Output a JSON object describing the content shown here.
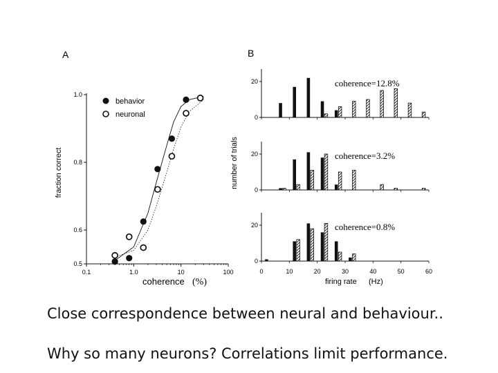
{
  "captions": {
    "line1": "Close correspondence between neural and behaviour..",
    "line2": "Why so many neurons?  Correlations limit performance."
  },
  "colors": {
    "ink": "#111111",
    "background": "#ffffff"
  },
  "chart_data": [
    {
      "panel": "A",
      "type": "scatter",
      "xscale": "log",
      "xlim": [
        0.1,
        100
      ],
      "ylim": [
        0.5,
        1.0
      ],
      "xlabel": "coherence",
      "xunit": "(%)",
      "ylabel": "fraction correct",
      "xticks": [
        "0.1",
        "1.0",
        "10",
        "100"
      ],
      "yticks": [
        "0.5",
        "0.6",
        "0.8",
        "1.0"
      ],
      "legend_position": "top-left",
      "series": [
        {
          "name": "behavior",
          "marker": "filled-circle",
          "points": [
            [
              0.4,
              0.507
            ],
            [
              0.8,
              0.517
            ],
            [
              1.6,
              0.625
            ],
            [
              3.2,
              0.78
            ],
            [
              6.4,
              0.87
            ],
            [
              12.8,
              0.985
            ],
            [
              25.6,
              0.99
            ]
          ]
        },
        {
          "name": "neuronal",
          "marker": "open-circle",
          "points": [
            [
              0.4,
              0.525
            ],
            [
              0.8,
              0.58
            ],
            [
              1.6,
              0.548
            ],
            [
              3.2,
              0.72
            ],
            [
              6.4,
              0.818
            ],
            [
              12.8,
              0.945
            ],
            [
              25.6,
              0.99
            ]
          ]
        }
      ],
      "fit_curves": [
        {
          "series": "behavior",
          "style": "solid",
          "points": [
            [
              0.4,
              0.51
            ],
            [
              1,
              0.55
            ],
            [
              2,
              0.65
            ],
            [
              3,
              0.74
            ],
            [
              5,
              0.85
            ],
            [
              7,
              0.92
            ],
            [
              10,
              0.965
            ],
            [
              15,
              0.985
            ],
            [
              30,
              0.995
            ]
          ]
        },
        {
          "series": "neuronal",
          "style": "dotted",
          "points": [
            [
              0.4,
              0.52
            ],
            [
              1,
              0.54
            ],
            [
              2,
              0.6
            ],
            [
              3,
              0.67
            ],
            [
              5,
              0.77
            ],
            [
              7,
              0.84
            ],
            [
              10,
              0.905
            ],
            [
              15,
              0.95
            ],
            [
              30,
              0.985
            ]
          ]
        }
      ]
    },
    {
      "panel": "B",
      "type": "bar",
      "xlabel": "firing rate",
      "xunit": "(Hz)",
      "ylabel": "number of trials",
      "xlim": [
        0,
        60
      ],
      "ylim": [
        0,
        25
      ],
      "xticks": [
        "0",
        "10",
        "20",
        "30",
        "40",
        "50",
        "60"
      ],
      "yticks": [
        "0",
        "20"
      ],
      "subplots": [
        {
          "label": "coherence=12.8%",
          "filled": [
            [
              7.5,
              8
            ],
            [
              12.5,
              17
            ],
            [
              17.5,
              22
            ],
            [
              22.5,
              9
            ],
            [
              27.5,
              4
            ]
          ],
          "hatched": [
            [
              22.5,
              2
            ],
            [
              27.5,
              6
            ],
            [
              32.5,
              9
            ],
            [
              37.5,
              10
            ],
            [
              42.5,
              15
            ],
            [
              47.5,
              16
            ],
            [
              52.5,
              8
            ],
            [
              57.5,
              3
            ]
          ]
        },
        {
          "label": "coherence=3.2%",
          "filled": [
            [
              7.5,
              1
            ],
            [
              12.5,
              17
            ],
            [
              17.5,
              21
            ],
            [
              22.5,
              18
            ],
            [
              27.5,
              3
            ]
          ],
          "hatched": [
            [
              7.5,
              1
            ],
            [
              12.5,
              3
            ],
            [
              17.5,
              11
            ],
            [
              22.5,
              20
            ],
            [
              27.5,
              10
            ],
            [
              32.5,
              11
            ],
            [
              42.5,
              3
            ],
            [
              47.5,
              1
            ],
            [
              57.5,
              1
            ]
          ]
        },
        {
          "label": "coherence=0.8%",
          "filled": [
            [
              2.5,
              1
            ],
            [
              12.5,
              11
            ],
            [
              17.5,
              21
            ],
            [
              22.5,
              16
            ],
            [
              27.5,
              11
            ],
            [
              32.5,
              2
            ]
          ],
          "hatched": [
            [
              12.5,
              12
            ],
            [
              17.5,
              18
            ],
            [
              22.5,
              21
            ],
            [
              27.5,
              5
            ],
            [
              32.5,
              4
            ]
          ]
        }
      ]
    }
  ]
}
